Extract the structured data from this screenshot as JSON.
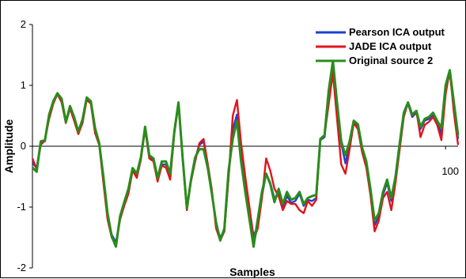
{
  "chart_data": {
    "type": "line",
    "title": "",
    "xlabel": "Samples",
    "ylabel": "Amplitude",
    "ylim": [
      -2,
      2
    ],
    "xlim": [
      1,
      103
    ],
    "yticks": [
      -2,
      -1,
      0,
      1,
      2
    ],
    "xticks": [
      100
    ],
    "grid": false,
    "legend_position": "top-right",
    "series": [
      {
        "name": "Pearson ICA output",
        "color": "#1f3fd6",
        "values": [
          -0.28,
          -0.35,
          0.05,
          0.08,
          0.5,
          0.72,
          0.85,
          0.74,
          0.4,
          0.65,
          0.46,
          0.24,
          0.42,
          0.78,
          0.72,
          0.25,
          0.05,
          -0.55,
          -1.15,
          -1.45,
          -1.58,
          -1.2,
          -0.95,
          -0.75,
          -0.38,
          -0.5,
          -0.2,
          0.3,
          -0.18,
          -0.22,
          -0.55,
          -0.3,
          -0.3,
          -0.48,
          0.22,
          0.72,
          -0.2,
          -1.02,
          -0.55,
          -0.2,
          0.02,
          0.08,
          -0.3,
          -0.75,
          -1.3,
          -1.5,
          -1.38,
          -0.5,
          0.28,
          0.52,
          -0.18,
          -0.62,
          -1.02,
          -1.48,
          -1.3,
          -0.82,
          -0.45,
          -0.6,
          -0.86,
          -0.78,
          -1.0,
          -0.82,
          -0.93,
          -0.9,
          -0.78,
          -0.98,
          -0.88,
          -0.9,
          -0.85,
          0.1,
          0.15,
          0.85,
          1.35,
          0.65,
          0.05,
          -0.28,
          0.05,
          0.4,
          0.32,
          -0.05,
          -0.3,
          -0.75,
          -1.3,
          -1.15,
          -0.8,
          -0.6,
          -0.9,
          -0.55,
          0.0,
          0.52,
          0.7,
          0.48,
          0.55,
          0.28,
          0.42,
          0.45,
          0.52,
          0.4,
          0.2,
          0.95,
          1.2,
          0.65,
          0.12
        ]
      },
      {
        "name": "JADE ICA output",
        "color": "#e0141c",
        "values": [
          -0.2,
          -0.38,
          0.02,
          0.1,
          0.45,
          0.7,
          0.86,
          0.72,
          0.38,
          0.62,
          0.42,
          0.2,
          0.38,
          0.76,
          0.7,
          0.22,
          0.02,
          -0.6,
          -1.2,
          -1.5,
          -1.62,
          -1.2,
          -0.98,
          -0.78,
          -0.4,
          -0.52,
          -0.22,
          0.28,
          -0.2,
          -0.25,
          -0.58,
          -0.32,
          -0.35,
          -0.55,
          0.2,
          0.7,
          -0.22,
          -1.05,
          -0.58,
          -0.25,
          0.05,
          0.12,
          -0.28,
          -0.72,
          -1.35,
          -1.55,
          -1.4,
          -0.52,
          0.5,
          0.76,
          0.05,
          -0.5,
          -1.0,
          -1.55,
          -1.35,
          -0.85,
          -0.2,
          -0.4,
          -0.7,
          -0.82,
          -1.05,
          -0.9,
          -0.95,
          -0.95,
          -1.05,
          -1.1,
          -0.9,
          -0.98,
          -0.88,
          0.1,
          0.18,
          0.7,
          1.2,
          0.45,
          -0.3,
          -0.45,
          -0.05,
          0.38,
          0.28,
          -0.1,
          -0.35,
          -0.8,
          -1.4,
          -1.22,
          -0.85,
          -0.75,
          -1.05,
          -0.6,
          -0.05,
          0.48,
          0.72,
          0.5,
          0.58,
          0.15,
          0.35,
          0.4,
          0.48,
          0.35,
          0.1,
          0.85,
          1.25,
          0.55,
          0.02
        ]
      },
      {
        "name": "Original source 2",
        "color": "#2a8c1c",
        "values": [
          -0.35,
          -0.42,
          0.08,
          0.1,
          0.52,
          0.74,
          0.87,
          0.78,
          0.4,
          0.66,
          0.48,
          0.24,
          0.44,
          0.8,
          0.74,
          0.3,
          0.05,
          -0.5,
          -1.1,
          -1.48,
          -1.65,
          -1.15,
          -0.92,
          -0.7,
          -0.36,
          -0.45,
          -0.18,
          0.32,
          -0.15,
          -0.2,
          -0.52,
          -0.25,
          -0.25,
          -0.45,
          0.24,
          0.72,
          -0.2,
          -1.02,
          -0.55,
          -0.18,
          -0.05,
          -0.05,
          -0.35,
          -0.78,
          -1.25,
          -1.55,
          -1.35,
          -0.4,
          0.12,
          0.42,
          -0.25,
          -0.75,
          -1.2,
          -1.65,
          -1.2,
          -0.75,
          -0.45,
          -0.62,
          -0.92,
          -0.7,
          -0.95,
          -0.75,
          -0.88,
          -0.85,
          -0.75,
          -0.95,
          -0.85,
          -0.82,
          -0.8,
          0.12,
          0.18,
          0.92,
          1.4,
          0.72,
          0.08,
          -0.15,
          0.08,
          0.42,
          0.36,
          -0.02,
          -0.25,
          -0.7,
          -1.22,
          -1.1,
          -0.75,
          -0.55,
          -0.85,
          -0.5,
          0.05,
          0.55,
          0.72,
          0.52,
          0.58,
          0.32,
          0.45,
          0.48,
          0.55,
          0.42,
          0.3,
          1.0,
          1.25,
          0.72,
          0.18
        ]
      }
    ]
  }
}
